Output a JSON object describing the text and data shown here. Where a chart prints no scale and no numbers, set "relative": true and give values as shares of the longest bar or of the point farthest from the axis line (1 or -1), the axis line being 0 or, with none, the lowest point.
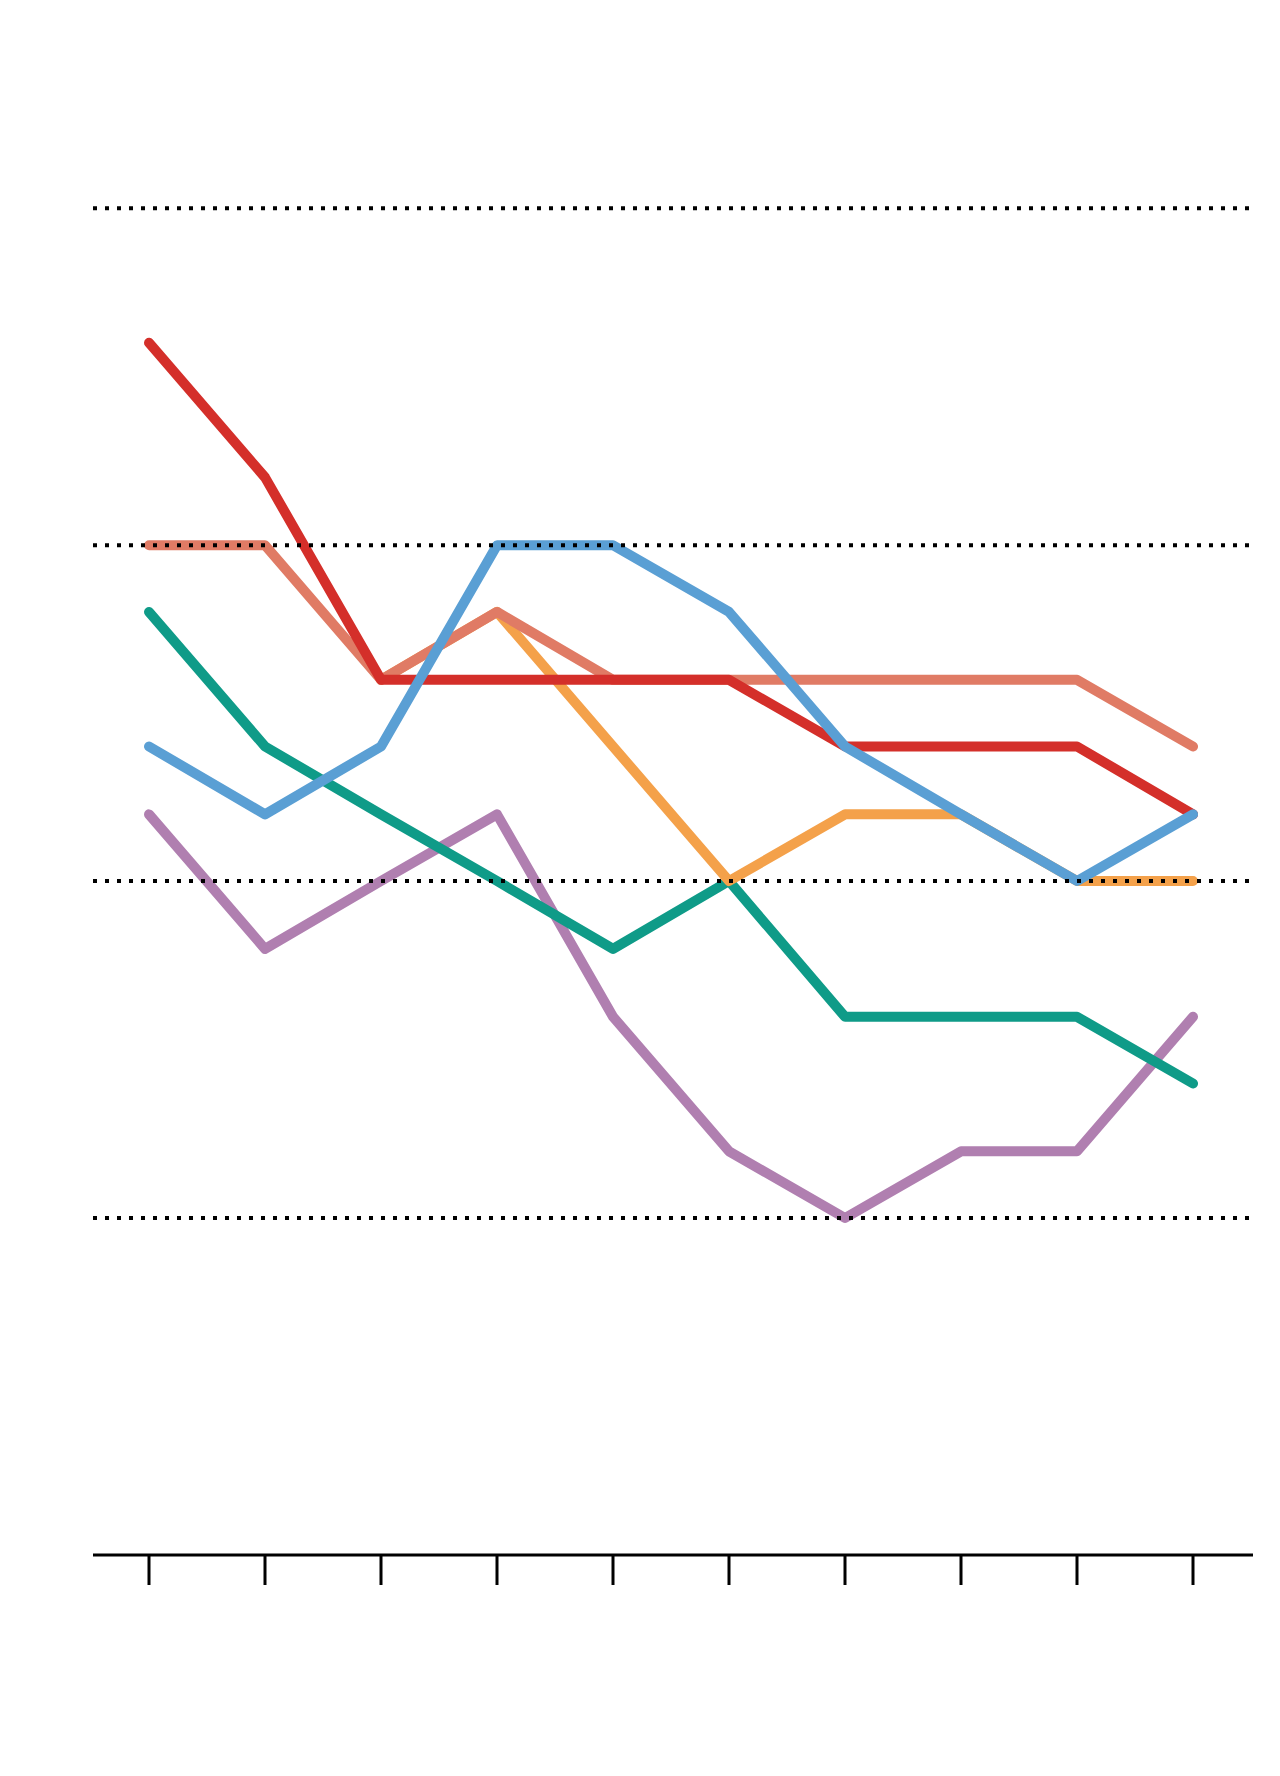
{
  "chart_data": {
    "type": "line",
    "relative": true,
    "categories": [
      null,
      null,
      null,
      null,
      null,
      null,
      null,
      null,
      null,
      null
    ],
    "series": [
      {
        "color": "#b07fb0",
        "values": [
          0.611,
          0.5,
          0.556,
          0.611,
          0.444,
          0.333,
          0.278,
          0.333,
          0.333,
          0.444
        ]
      },
      {
        "color": "#0f9b88",
        "values": [
          0.778,
          0.667,
          0.611,
          0.556,
          0.5,
          0.556,
          0.444,
          0.444,
          0.444,
          0.389
        ]
      },
      {
        "color": "#f4a14a",
        "values": [
          null,
          null,
          0.722,
          0.778,
          0.667,
          0.556,
          0.611,
          0.611,
          0.556,
          0.556
        ]
      },
      {
        "color": "#e07b65",
        "values": [
          0.833,
          0.833,
          0.722,
          0.778,
          0.722,
          0.722,
          0.722,
          0.722,
          0.722,
          0.667
        ]
      },
      {
        "color": "#d42f2a",
        "values": [
          1,
          0.889,
          0.722,
          0.722,
          0.722,
          0.722,
          0.667,
          0.667,
          0.667,
          0.611
        ]
      },
      {
        "color": "#5a9fd4",
        "values": [
          0.667,
          0.611,
          0.667,
          0.833,
          0.833,
          0.778,
          0.667,
          0.611,
          0.556,
          0.611
        ]
      }
    ],
    "ref_lines": [
      {
        "axis": "y",
        "value": 0.278,
        "color": "#000000",
        "line_style": "dotted"
      },
      {
        "axis": "y",
        "value": 0.556,
        "color": "#000000",
        "line_style": "dotted"
      },
      {
        "axis": "y",
        "value": 0.833,
        "color": "#000000",
        "line_style": "dotted"
      },
      {
        "axis": "y",
        "value": 1.111,
        "color": "#000000",
        "line_style": "dotted"
      }
    ],
    "grid": false,
    "marker": "none",
    "line_style": "solid"
  }
}
